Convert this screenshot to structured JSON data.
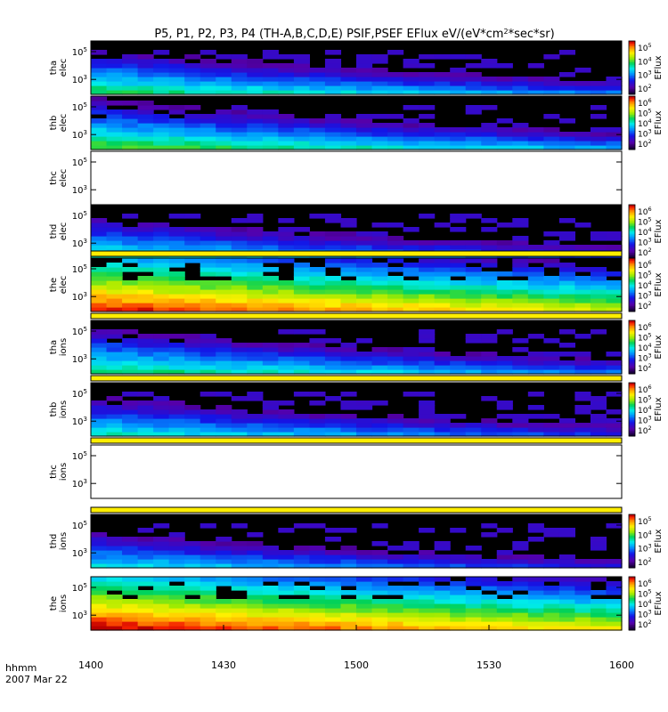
{
  "chart_data": {
    "type": "heatmap",
    "title": "P5, P1, P2, P3, P4 (TH-A,B,C,D,E) PSIF,PSEF EFlux eV/(eV*cm",
    "title_sup": "2",
    "title_tail": "*sec*sr)",
    "x_label_line1": "hhmm",
    "x_label_line2": "2007 Mar 22",
    "x_ticks": [
      "1400",
      "1430",
      "1500",
      "1530",
      "1600"
    ],
    "x_range": [
      0,
      120
    ],
    "x_tick_values": [
      0,
      30,
      60,
      90,
      120
    ],
    "colorbar_label": "EFlux",
    "colorbar_ticks": {
      "five": [
        {
          "b": "10",
          "e": "6"
        },
        {
          "b": "10",
          "e": "5"
        },
        {
          "b": "10",
          "e": "4"
        },
        {
          "b": "10",
          "e": "3"
        },
        {
          "b": "10",
          "e": "2"
        }
      ],
      "four": [
        {
          "b": "10",
          "e": "5"
        },
        {
          "b": "10",
          "e": "4"
        },
        {
          "b": "10",
          "e": "3"
        },
        {
          "b": "10",
          "e": "2"
        }
      ]
    },
    "y_ticks": [
      {
        "b": "10",
        "e": "5"
      },
      {
        "b": "10",
        "e": "3"
      }
    ],
    "panels": [
      {
        "probe": "tha",
        "species": "elec",
        "has_data": true,
        "intensity": 0.55,
        "decay": 0.45,
        "colorbar": "four",
        "stripe": false
      },
      {
        "probe": "thb",
        "species": "elec",
        "has_data": true,
        "intensity": 0.6,
        "decay": 0.4,
        "colorbar": "five",
        "stripe": false
      },
      {
        "probe": "thc",
        "species": "elec",
        "has_data": false,
        "intensity": 0,
        "decay": 0,
        "colorbar": "none",
        "stripe": false
      },
      {
        "probe": "thd",
        "species": "elec",
        "has_data": true,
        "intensity": 0.5,
        "decay": 0.4,
        "colorbar": "five",
        "stripe": false
      },
      {
        "probe": "the",
        "species": "elec",
        "has_data": true,
        "intensity": 0.92,
        "decay": 0.12,
        "colorbar": "five",
        "stripe": true
      },
      {
        "probe": "tha",
        "species": "ions",
        "has_data": true,
        "intensity": 0.55,
        "decay": 0.4,
        "colorbar": "five",
        "stripe": true
      },
      {
        "probe": "thb",
        "species": "ions",
        "has_data": true,
        "intensity": 0.48,
        "decay": 0.42,
        "colorbar": "five",
        "stripe": true
      },
      {
        "probe": "thc",
        "species": "ions",
        "has_data": false,
        "intensity": 0,
        "decay": 0,
        "colorbar": "none",
        "stripe": true
      },
      {
        "probe": "thd",
        "species": "ions",
        "has_data": true,
        "intensity": 0.45,
        "decay": 0.45,
        "colorbar": "four",
        "stripe": true
      },
      {
        "probe": "the",
        "species": "ions",
        "has_data": true,
        "intensity": 0.95,
        "decay": 0.1,
        "colorbar": "five",
        "stripe": false
      }
    ]
  }
}
